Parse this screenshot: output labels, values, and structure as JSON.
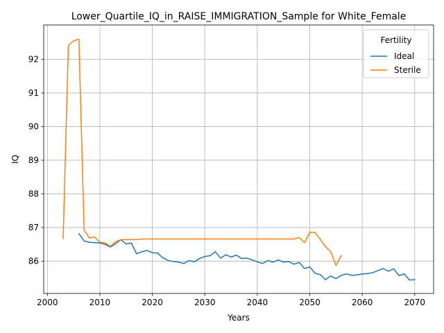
{
  "chart_data": {
    "type": "line",
    "title": "Lower_Quartile_IQ_in_RAISE_IMMIGRATION_Sample for White_Female",
    "xlabel": "Years",
    "ylabel": "IQ",
    "xlim": [
      1999.3,
      2073.6
    ],
    "ylim": [
      85.04,
      93.02
    ],
    "xticks": [
      2000,
      2010,
      2020,
      2030,
      2040,
      2050,
      2060,
      2070
    ],
    "yticks": [
      86,
      87,
      88,
      89,
      90,
      91,
      92
    ],
    "grid": true,
    "legend": {
      "title": "Fertility",
      "placement": "top-right"
    },
    "series": [
      {
        "name": "Ideal",
        "color": "#1f77b4",
        "x": [
          2006,
          2007,
          2008,
          2009,
          2010,
          2011,
          2012,
          2013,
          2014,
          2015,
          2016,
          2017,
          2018,
          2019,
          2020,
          2021,
          2022,
          2023,
          2024,
          2025,
          2026,
          2027,
          2028,
          2029,
          2030,
          2031,
          2032,
          2033,
          2034,
          2035,
          2036,
          2037,
          2038,
          2039,
          2040,
          2041,
          2042,
          2043,
          2044,
          2045,
          2046,
          2047,
          2048,
          2049,
          2050,
          2051,
          2052,
          2053,
          2054,
          2055,
          2056,
          2057,
          2058,
          2059,
          2060,
          2061,
          2062,
          2063,
          2064,
          2065,
          2066,
          2067,
          2068,
          2069,
          2070
        ],
        "y": [
          86.82,
          86.6,
          86.56,
          86.55,
          86.54,
          86.5,
          86.42,
          86.52,
          86.64,
          86.51,
          86.54,
          86.22,
          86.28,
          86.32,
          86.25,
          86.24,
          86.1,
          86.02,
          85.99,
          85.97,
          85.93,
          86.02,
          85.98,
          86.08,
          86.14,
          86.16,
          86.28,
          86.09,
          86.19,
          86.12,
          86.18,
          86.08,
          86.09,
          86.04,
          85.98,
          85.93,
          86.02,
          85.97,
          86.04,
          85.97,
          85.99,
          85.91,
          85.96,
          85.78,
          85.83,
          85.64,
          85.6,
          85.45,
          85.56,
          85.48,
          85.58,
          85.62,
          85.58,
          85.59,
          85.62,
          85.63,
          85.66,
          85.72,
          85.78,
          85.7,
          85.77,
          85.57,
          85.62,
          85.44,
          85.45
        ]
      },
      {
        "name": "Sterile",
        "color": "#ff7f0e",
        "x": [
          2003,
          2004,
          2005,
          2006,
          2007,
          2008,
          2009,
          2010,
          2011,
          2012,
          2013,
          2014,
          2015,
          2016,
          2017,
          2018,
          2019,
          2020,
          2021,
          2022,
          2023,
          2024,
          2025,
          2026,
          2027,
          2028,
          2029,
          2030,
          2031,
          2032,
          2033,
          2034,
          2035,
          2036,
          2037,
          2038,
          2039,
          2040,
          2041,
          2042,
          2043,
          2044,
          2045,
          2046,
          2047,
          2048,
          2049,
          2050,
          2051,
          2052,
          2053,
          2054,
          2055,
          2056
        ],
        "y": [
          86.67,
          92.42,
          92.55,
          92.6,
          86.93,
          86.69,
          86.72,
          86.56,
          86.54,
          86.44,
          86.58,
          86.64,
          86.64,
          86.64,
          86.64,
          86.66,
          86.66,
          86.66,
          86.66,
          86.66,
          86.66,
          86.66,
          86.66,
          86.66,
          86.66,
          86.66,
          86.66,
          86.66,
          86.66,
          86.66,
          86.66,
          86.66,
          86.66,
          86.66,
          86.66,
          86.66,
          86.66,
          86.66,
          86.66,
          86.66,
          86.66,
          86.66,
          86.66,
          86.66,
          86.66,
          86.7,
          86.55,
          86.86,
          86.85,
          86.65,
          86.43,
          86.28,
          85.87,
          86.17
        ]
      }
    ]
  }
}
